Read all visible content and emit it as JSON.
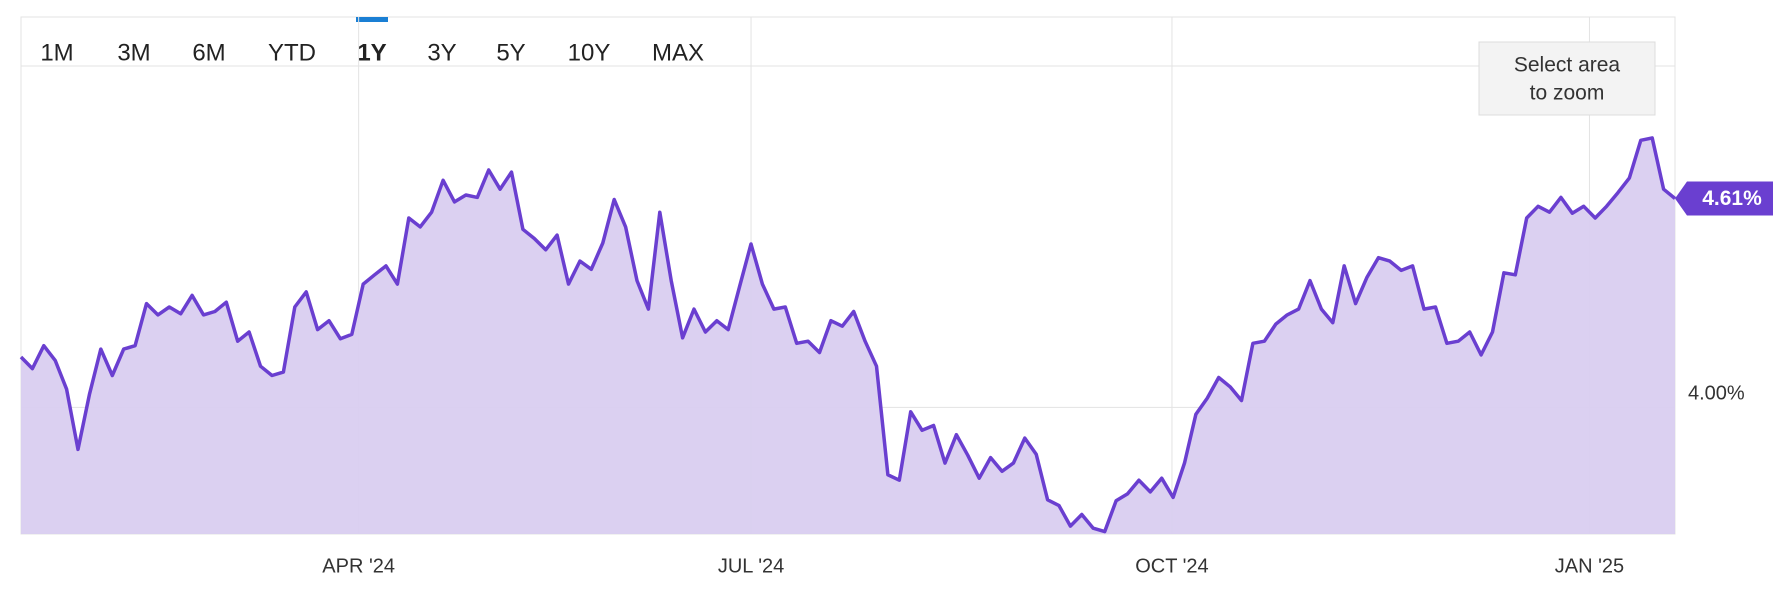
{
  "range_buttons": [
    "1M",
    "3M",
    "6M",
    "YTD",
    "1Y",
    "3Y",
    "5Y",
    "10Y",
    "MAX"
  ],
  "selected_range": "1Y",
  "disabled_ranges": [
    "10Y",
    "MAX"
  ],
  "zoom_hint": [
    "Select area",
    "to zoom"
  ],
  "chart_data": {
    "type": "area",
    "color": "#6a3fd0",
    "fill": "#d9cdf0",
    "values": [
      4.147,
      4.113,
      4.18,
      4.137,
      4.053,
      3.877,
      4.037,
      4.17,
      4.093,
      4.17,
      4.18,
      4.303,
      4.27,
      4.293,
      4.273,
      4.327,
      4.27,
      4.28,
      4.307,
      4.193,
      4.22,
      4.12,
      4.093,
      4.103,
      4.293,
      4.337,
      4.227,
      4.253,
      4.2,
      4.213,
      4.36,
      4.387,
      4.413,
      4.36,
      4.553,
      4.527,
      4.57,
      4.663,
      4.6,
      4.62,
      4.613,
      4.693,
      4.637,
      4.687,
      4.52,
      4.493,
      4.46,
      4.503,
      4.36,
      4.427,
      4.403,
      4.48,
      4.607,
      4.527,
      4.37,
      4.287,
      4.57,
      4.37,
      4.203,
      4.287,
      4.22,
      4.253,
      4.227,
      4.353,
      4.477,
      4.36,
      4.287,
      4.293,
      4.187,
      4.193,
      4.16,
      4.253,
      4.237,
      4.28,
      4.193,
      4.12,
      3.803,
      3.787,
      3.987,
      3.933,
      3.947,
      3.837,
      3.92,
      3.86,
      3.793,
      3.853,
      3.813,
      3.837,
      3.91,
      3.863,
      3.73,
      3.713,
      3.653,
      3.687,
      3.647,
      3.637,
      3.727,
      3.747,
      3.787,
      3.753,
      3.793,
      3.737,
      3.837,
      3.98,
      4.027,
      4.087,
      4.06,
      4.02,
      4.187,
      4.193,
      4.243,
      4.27,
      4.287,
      4.37,
      4.287,
      4.247,
      4.413,
      4.303,
      4.38,
      4.437,
      4.427,
      4.4,
      4.413,
      4.287,
      4.293,
      4.187,
      4.193,
      4.22,
      4.153,
      4.22,
      4.393,
      4.387,
      4.553,
      4.587,
      4.57,
      4.613,
      4.567,
      4.587,
      4.553,
      4.587,
      4.627,
      4.67,
      4.78,
      4.787,
      4.637,
      4.61
    ],
    "xlim": [
      0,
      145
    ],
    "xticks": [
      {
        "value": 29.6,
        "label": "APR '24"
      },
      {
        "value": 64,
        "label": "JUL '24"
      },
      {
        "value": 100.9,
        "label": "OCT '24"
      },
      {
        "value": 137.5,
        "label": "JAN '25"
      }
    ],
    "ylim": [
      3.63,
      5.14
    ],
    "yticks": [
      {
        "value": 4,
        "label": "4.00%"
      }
    ],
    "last_value": {
      "value": 4.61,
      "label": "4.61%"
    },
    "grid": true
  }
}
